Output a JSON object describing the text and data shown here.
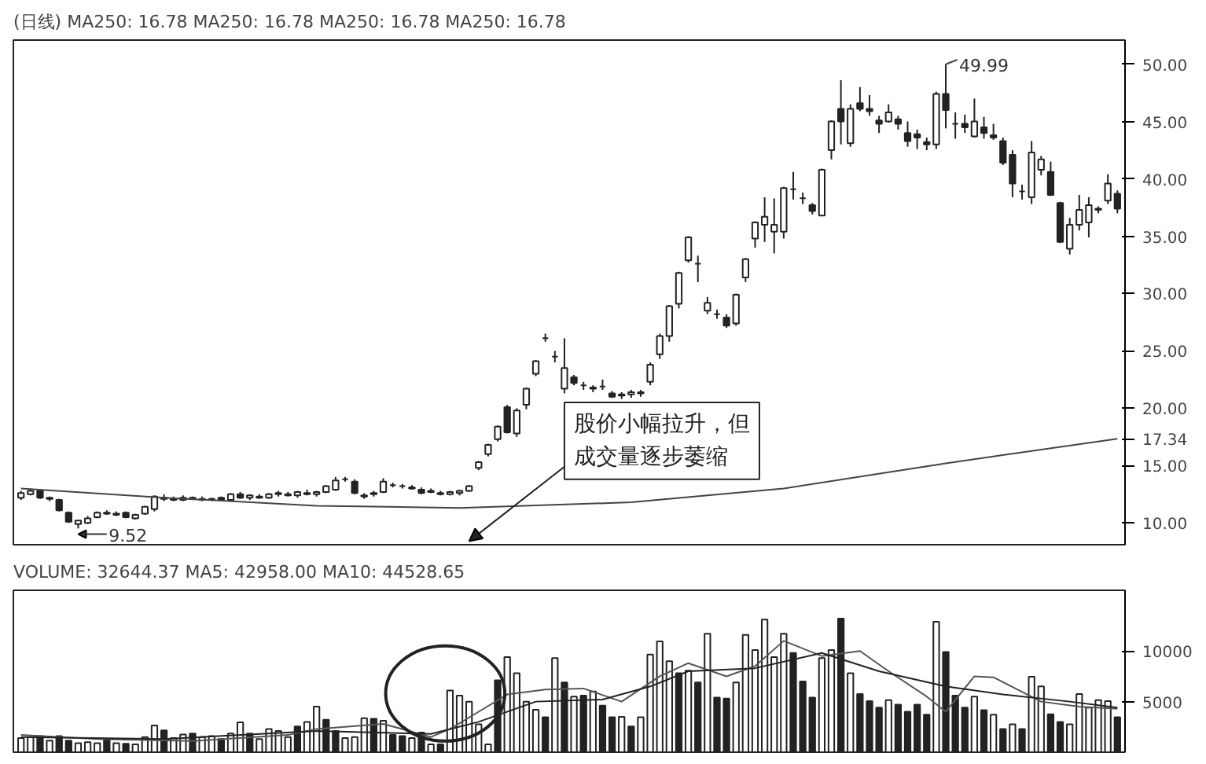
{
  "chart_data": [
    {
      "type": "candlestick",
      "title": "(日线) MA250: 16.78 MA250: 16.78 MA250: 16.78 MA250: 16.78",
      "categories": [
        null,
        null,
        null,
        null,
        null,
        null,
        null,
        null,
        null,
        null,
        null,
        null,
        null,
        null,
        null,
        null,
        null,
        null,
        null,
        null,
        null,
        null,
        null,
        null,
        null,
        null,
        null,
        null,
        null,
        null,
        null,
        null,
        null,
        null,
        null,
        null,
        null,
        null,
        null,
        null,
        null,
        null,
        null,
        null,
        null,
        null,
        null,
        null,
        null,
        null,
        null,
        null,
        null,
        null,
        null,
        null,
        null,
        null,
        null,
        null,
        null,
        null,
        null,
        null,
        null,
        null,
        null,
        null,
        null,
        null,
        null,
        null,
        null,
        null,
        null,
        null,
        null,
        null,
        null,
        null,
        null,
        null,
        null,
        null,
        null,
        null,
        null,
        null,
        null,
        null,
        null,
        null,
        null,
        null,
        null,
        null,
        null,
        null,
        null,
        null,
        null,
        null,
        null,
        null,
        null,
        null,
        null,
        null,
        null,
        null,
        null,
        null,
        null,
        null,
        null,
        null
      ],
      "ohlc": [
        [
          12.2,
          12.8,
          12.0,
          12.6
        ],
        [
          12.5,
          13.0,
          12.4,
          12.8
        ],
        [
          12.8,
          12.9,
          12.1,
          12.2
        ],
        [
          12.1,
          12.3,
          11.9,
          12.2
        ],
        [
          12.0,
          12.1,
          11.0,
          11.1
        ],
        [
          10.9,
          11.0,
          10.0,
          10.1
        ],
        [
          9.9,
          10.2,
          9.52,
          10.2
        ],
        [
          10.0,
          10.6,
          9.9,
          10.4
        ],
        [
          10.5,
          11.0,
          10.4,
          10.9
        ],
        [
          10.9,
          11.1,
          10.7,
          10.8
        ],
        [
          10.8,
          11.0,
          10.6,
          10.7
        ],
        [
          10.9,
          11.0,
          10.4,
          10.5
        ],
        [
          10.4,
          10.8,
          10.3,
          10.7
        ],
        [
          10.8,
          11.5,
          10.7,
          11.4
        ],
        [
          11.2,
          12.4,
          11.0,
          12.3
        ],
        [
          12.2,
          12.5,
          11.9,
          12.1
        ],
        [
          12.1,
          12.3,
          11.9,
          12.0
        ],
        [
          12.0,
          12.4,
          11.9,
          12.2
        ],
        [
          12.2,
          12.3,
          12.0,
          12.1
        ],
        [
          12.1,
          12.3,
          11.9,
          12.0
        ],
        [
          12.0,
          12.2,
          11.9,
          12.1
        ],
        [
          12.2,
          12.3,
          11.9,
          12.0
        ],
        [
          12.0,
          12.6,
          11.9,
          12.5
        ],
        [
          12.5,
          12.7,
          12.1,
          12.2
        ],
        [
          12.2,
          12.5,
          12.0,
          12.4
        ],
        [
          12.3,
          12.5,
          12.1,
          12.2
        ],
        [
          12.2,
          12.6,
          12.1,
          12.5
        ],
        [
          12.5,
          12.8,
          12.3,
          12.6
        ],
        [
          12.5,
          12.7,
          12.3,
          12.4
        ],
        [
          12.4,
          12.8,
          12.2,
          12.7
        ],
        [
          12.6,
          12.9,
          12.4,
          12.5
        ],
        [
          12.5,
          12.8,
          12.3,
          12.7
        ],
        [
          12.7,
          13.3,
          12.6,
          13.2
        ],
        [
          12.9,
          14.0,
          12.8,
          13.7
        ],
        [
          13.8,
          14.0,
          13.6,
          13.8
        ],
        [
          13.6,
          13.8,
          12.5,
          12.6
        ],
        [
          12.4,
          12.6,
          12.1,
          12.3
        ],
        [
          12.5,
          12.8,
          12.3,
          12.6
        ],
        [
          12.7,
          13.9,
          12.6,
          13.6
        ],
        [
          13.3,
          13.5,
          13.1,
          13.3
        ],
        [
          13.2,
          13.4,
          13.0,
          13.2
        ],
        [
          13.1,
          13.3,
          12.9,
          13.0
        ],
        [
          12.9,
          13.1,
          12.5,
          12.6
        ],
        [
          12.8,
          13.0,
          12.6,
          12.7
        ],
        [
          12.6,
          12.8,
          12.4,
          12.5
        ],
        [
          12.5,
          12.8,
          12.4,
          12.7
        ],
        [
          12.6,
          12.9,
          12.4,
          12.8
        ],
        [
          12.8,
          13.3,
          12.7,
          13.2
        ],
        [
          14.8,
          15.4,
          14.6,
          15.3
        ],
        [
          16.0,
          16.9,
          15.8,
          16.8
        ],
        [
          17.3,
          18.5,
          17.1,
          18.4
        ],
        [
          20.1,
          20.3,
          17.8,
          17.9
        ],
        [
          17.8,
          20.0,
          17.5,
          19.8
        ],
        [
          20.3,
          21.8,
          19.9,
          21.7
        ],
        [
          23.0,
          24.2,
          22.8,
          24.1
        ],
        [
          26.1,
          26.5,
          25.8,
          26.1
        ],
        [
          24.5,
          25.0,
          24.0,
          24.5
        ],
        [
          21.7,
          26.1,
          21.3,
          23.5
        ],
        [
          22.7,
          22.9,
          22.0,
          22.2
        ],
        [
          22.0,
          22.3,
          21.6,
          22.0
        ],
        [
          21.7,
          22.0,
          21.4,
          21.8
        ],
        [
          21.9,
          22.5,
          21.6,
          21.9
        ],
        [
          21.3,
          21.5,
          20.9,
          21.0
        ],
        [
          21.1,
          21.4,
          20.8,
          21.2
        ],
        [
          21.2,
          21.6,
          20.9,
          21.4
        ],
        [
          21.3,
          21.6,
          21.0,
          21.4
        ],
        [
          22.3,
          24.0,
          22.0,
          23.8
        ],
        [
          24.7,
          26.5,
          24.3,
          26.3
        ],
        [
          26.3,
          29.0,
          25.8,
          28.9
        ],
        [
          29.1,
          31.9,
          28.7,
          31.8
        ],
        [
          32.9,
          35.0,
          32.7,
          34.9
        ],
        [
          32.6,
          33.3,
          31.0,
          32.6
        ],
        [
          28.5,
          29.7,
          28.2,
          29.2
        ],
        [
          28.2,
          28.6,
          27.8,
          28.2
        ],
        [
          27.9,
          28.2,
          27.0,
          27.2
        ],
        [
          27.4,
          30.0,
          27.2,
          29.9
        ],
        [
          31.4,
          33.1,
          31.0,
          33.0
        ],
        [
          34.8,
          36.3,
          34.0,
          36.2
        ],
        [
          36.0,
          38.4,
          34.5,
          36.7
        ],
        [
          35.4,
          38.3,
          33.5,
          36.0
        ],
        [
          35.4,
          39.3,
          34.8,
          39.2
        ],
        [
          39.1,
          40.6,
          38.2,
          39.1
        ],
        [
          38.3,
          38.8,
          37.8,
          38.3
        ],
        [
          37.7,
          37.9,
          36.9,
          37.2
        ],
        [
          36.8,
          40.9,
          36.8,
          40.8
        ],
        [
          42.5,
          45.1,
          41.7,
          45.0
        ],
        [
          46.1,
          48.6,
          43.0,
          45.0
        ],
        [
          43.1,
          46.5,
          42.8,
          46.1
        ],
        [
          46.6,
          48.0,
          45.9,
          46.1
        ],
        [
          46.1,
          47.3,
          45.5,
          45.9
        ],
        [
          45.1,
          45.5,
          44.0,
          44.8
        ],
        [
          45.0,
          46.5,
          44.9,
          45.8
        ],
        [
          45.2,
          45.5,
          44.3,
          44.8
        ],
        [
          44.0,
          45.0,
          42.8,
          43.3
        ],
        [
          43.9,
          44.3,
          42.6,
          43.6
        ],
        [
          43.2,
          43.6,
          42.5,
          43.0
        ],
        [
          43.0,
          47.6,
          42.6,
          47.4
        ],
        [
          47.4,
          49.99,
          44.4,
          46.0
        ],
        [
          44.8,
          45.8,
          43.5,
          44.8
        ],
        [
          44.8,
          45.6,
          44.0,
          44.5
        ],
        [
          43.7,
          47.0,
          43.6,
          45.0
        ],
        [
          44.5,
          45.4,
          43.5,
          44.0
        ],
        [
          43.8,
          44.8,
          43.4,
          43.6
        ],
        [
          43.3,
          43.6,
          41.2,
          41.4
        ],
        [
          42.1,
          42.5,
          38.4,
          39.6
        ],
        [
          38.9,
          39.5,
          38.2,
          38.9
        ],
        [
          38.4,
          43.3,
          37.8,
          42.3
        ],
        [
          40.8,
          42.0,
          40.3,
          41.7
        ],
        [
          40.6,
          41.5,
          38.5,
          38.6
        ],
        [
          37.9,
          38.0,
          34.4,
          34.5
        ],
        [
          33.9,
          36.6,
          33.4,
          36.0
        ],
        [
          36.0,
          38.6,
          35.5,
          37.3
        ],
        [
          36.2,
          38.4,
          34.9,
          37.7
        ],
        [
          37.3,
          37.6,
          37.0,
          37.4
        ],
        [
          38.1,
          40.4,
          37.8,
          39.6
        ],
        [
          38.7,
          39.0,
          37.0,
          37.4
        ]
      ],
      "series": [
        {
          "type": "line",
          "color": "#444444",
          "values": [
            13.0,
            null,
            null,
            null,
            null,
            null,
            null,
            null,
            null,
            null,
            null,
            null,
            null,
            null,
            null,
            12.2,
            null,
            null,
            null,
            null,
            null,
            null,
            null,
            null,
            null,
            null,
            null,
            null,
            null,
            null,
            null,
            11.5,
            null,
            null,
            null,
            null,
            null,
            null,
            null,
            null,
            null,
            null,
            null,
            null,
            null,
            null,
            11.3,
            null,
            null,
            null,
            null,
            null,
            null,
            null,
            null,
            null,
            null,
            null,
            null,
            null,
            null,
            null,
            null,
            null,
            11.8,
            null,
            null,
            null,
            null,
            null,
            null,
            null,
            null,
            null,
            null,
            null,
            null,
            null,
            null,
            null,
            13.0,
            null,
            null,
            null,
            null,
            null,
            null,
            null,
            null,
            null,
            null,
            null,
            null,
            null,
            null,
            null,
            null,
            15.2,
            null,
            null,
            null,
            null,
            null,
            null,
            null,
            null,
            null,
            null,
            null,
            null,
            null,
            null,
            null,
            null,
            null,
            17.34
          ]
        }
      ],
      "ylim": [
        8.1,
        52.1
      ],
      "yticks": [
        {
          "value": 10,
          "label": "10.00"
        },
        {
          "value": 15,
          "label": "15.00"
        },
        {
          "value": 17.34,
          "label": "17.34"
        },
        {
          "value": 20,
          "label": "20.00"
        },
        {
          "value": 25,
          "label": "25.00"
        },
        {
          "value": 30,
          "label": "30.00"
        },
        {
          "value": 35,
          "label": "35.00"
        },
        {
          "value": 40,
          "label": "40.00"
        },
        {
          "value": 45,
          "label": "45.00"
        },
        {
          "value": 50,
          "label": "50.00"
        }
      ],
      "tick_labels": "y",
      "annotations": [
        "49.99",
        "9.52",
        "股价小幅拉升，但成交量逐步萎缩"
      ]
    },
    {
      "type": "bar",
      "title": "VOLUME: 32644.37 MA5: 42958.00 MA10: 44528.65",
      "categories": [
        null,
        null,
        null,
        null,
        null,
        null,
        null,
        null,
        null,
        null,
        null,
        null,
        null,
        null,
        null,
        null,
        null,
        null,
        null,
        null,
        null,
        null,
        null,
        null,
        null,
        null,
        null,
        null,
        null,
        null,
        null,
        null,
        null,
        null,
        null,
        null,
        null,
        null,
        null,
        null,
        null,
        null,
        null,
        null,
        null,
        null,
        null,
        null,
        null,
        null,
        null,
        null,
        null,
        null,
        null,
        null,
        null,
        null,
        null,
        null,
        null,
        null,
        null,
        null,
        null,
        null,
        null,
        null,
        null,
        null,
        null,
        null,
        null,
        null,
        null,
        null,
        null,
        null,
        null,
        null,
        null,
        null,
        null,
        null,
        null,
        null,
        null,
        null,
        null,
        null,
        null,
        null,
        null,
        null,
        null,
        null,
        null,
        null,
        null,
        null,
        null,
        null,
        null,
        null,
        null,
        null,
        null,
        null,
        null,
        null,
        null,
        null,
        null,
        null,
        null,
        null
      ],
      "series": [
        {
          "type": "bar",
          "values": [
            1400,
            1500,
            1600,
            1150,
            1600,
            1150,
            900,
            1000,
            900,
            1300,
            900,
            830,
            780,
            1500,
            2650,
            2150,
            1400,
            1750,
            1850,
            1500,
            1600,
            1300,
            1850,
            2950,
            1850,
            1300,
            2300,
            2100,
            1500,
            2550,
            3000,
            4500,
            3200,
            2100,
            1400,
            1500,
            3350,
            3300,
            3100,
            1700,
            1600,
            1400,
            1950,
            780,
            780,
            6100,
            5600,
            5000,
            2750,
            780,
            7100,
            9400,
            7800,
            5000,
            4200,
            3450,
            9300,
            6900,
            5500,
            5600,
            6000,
            4600,
            3450,
            3500,
            2550,
            3450,
            9650,
            10950,
            9000,
            7800,
            8050,
            6900,
            11700,
            5400,
            5300,
            6900,
            11600,
            10100,
            13100,
            9400,
            11700,
            9800,
            7000,
            5400,
            9300,
            10100,
            13200,
            7800,
            5750,
            5050,
            4400,
            5150,
            4700,
            4000,
            4700,
            3700,
            12900,
            9900,
            5600,
            4400,
            5500,
            4150,
            3700,
            2300,
            2750,
            2300,
            7450,
            6500,
            3750,
            3000,
            2750,
            5750,
            4400,
            5150,
            5050,
            3450
          ],
          "colors": [
            "#ffffff",
            "#ffffff",
            "#222222",
            "#ffffff",
            "#222222",
            "#222222",
            "#ffffff",
            "#ffffff",
            "#ffffff",
            "#222222",
            "#ffffff",
            "#222222",
            "#ffffff",
            "#ffffff",
            "#ffffff",
            "#222222",
            "#ffffff",
            "#ffffff",
            "#222222",
            "#ffffff",
            "#ffffff",
            "#222222",
            "#ffffff",
            "#ffffff",
            "#222222",
            "#ffffff",
            "#ffffff",
            "#ffffff",
            "#ffffff",
            "#222222",
            "#ffffff",
            "#ffffff",
            "#222222",
            "#222222",
            "#ffffff",
            "#ffffff",
            "#ffffff",
            "#222222",
            "#ffffff",
            "#222222",
            "#222222",
            "#ffffff",
            "#222222",
            "#ffffff",
            "#222222",
            "#ffffff",
            "#ffffff",
            "#ffffff",
            "#ffffff",
            "#ffffff",
            "#222222",
            "#ffffff",
            "#ffffff",
            "#ffffff",
            "#ffffff",
            "#222222",
            "#ffffff",
            "#222222",
            "#ffffff",
            "#222222",
            "#ffffff",
            "#222222",
            "#222222",
            "#ffffff",
            "#222222",
            "#ffffff",
            "#ffffff",
            "#ffffff",
            "#ffffff",
            "#222222",
            "#ffffff",
            "#222222",
            "#ffffff",
            "#222222",
            "#222222",
            "#ffffff",
            "#ffffff",
            "#ffffff",
            "#ffffff",
            "#ffffff",
            "#ffffff",
            "#222222",
            "#222222",
            "#222222",
            "#ffffff",
            "#ffffff",
            "#222222",
            "#ffffff",
            "#222222",
            "#222222",
            "#222222",
            "#ffffff",
            "#222222",
            "#222222",
            "#222222",
            "#222222",
            "#ffffff",
            "#222222",
            "#222222",
            "#222222",
            "#ffffff",
            "#222222",
            "#ffffff",
            "#222222",
            "#ffffff",
            "#222222",
            "#ffffff",
            "#ffffff",
            "#222222",
            "#222222",
            "#ffffff",
            "#ffffff",
            "#ffffff",
            "#ffffff",
            "#ffffff",
            "#222222"
          ]
        },
        {
          "type": "line",
          "color": "#555555",
          "values": [
            1700,
            null,
            null,
            null,
            null,
            null,
            null,
            null,
            1300,
            null,
            null,
            null,
            null,
            null,
            null,
            null,
            null,
            null,
            1100,
            null,
            null,
            null,
            null,
            null,
            null,
            null,
            null,
            null,
            1700,
            null,
            null,
            2300,
            null,
            null,
            null,
            null,
            null,
            null,
            2800,
            null,
            null,
            null,
            null,
            1500,
            null,
            2300,
            null,
            null,
            4000,
            null,
            null,
            5700,
            null,
            null,
            null,
            6200,
            null,
            null,
            null,
            6300,
            null,
            null,
            null,
            5000,
            null,
            null,
            null,
            7500,
            null,
            null,
            8800,
            null,
            null,
            null,
            7500,
            null,
            null,
            8500,
            null,
            null,
            11000,
            null,
            null,
            null,
            9500,
            null,
            null,
            null,
            10000,
            null,
            null,
            8000,
            null,
            null,
            null,
            5500,
            null,
            4000,
            null,
            null,
            7500,
            null,
            7400,
            null,
            null,
            null,
            null,
            5000,
            null,
            null,
            null,
            4500,
            null,
            null,
            null,
            4300
          ]
        },
        {
          "type": "line",
          "color": "#222222",
          "values": [
            1500,
            null,
            null,
            null,
            null,
            null,
            null,
            null,
            null,
            null,
            null,
            null,
            null,
            null,
            null,
            1300,
            null,
            null,
            null,
            null,
            null,
            null,
            null,
            null,
            null,
            null,
            null,
            null,
            null,
            null,
            null,
            2100,
            null,
            null,
            null,
            null,
            null,
            null,
            null,
            null,
            null,
            null,
            null,
            1800,
            null,
            null,
            null,
            null,
            3000,
            null,
            null,
            null,
            null,
            null,
            5000,
            null,
            null,
            null,
            null,
            null,
            null,
            5200,
            null,
            null,
            null,
            null,
            6500,
            null,
            null,
            null,
            8000,
            null,
            null,
            null,
            null,
            null,
            null,
            8300,
            null,
            null,
            null,
            null,
            null,
            null,
            9800,
            null,
            null,
            null,
            null,
            null,
            8000,
            null,
            null,
            null,
            null,
            null,
            null,
            6500,
            null,
            null,
            null,
            null,
            null,
            5700,
            null,
            null,
            null,
            null,
            null,
            null,
            5000,
            null,
            null,
            null,
            null,
            4400
          ]
        }
      ],
      "ylim": [
        0,
        16000
      ],
      "yticks": [
        5000,
        10000
      ],
      "tick_labels": "y"
    }
  ]
}
